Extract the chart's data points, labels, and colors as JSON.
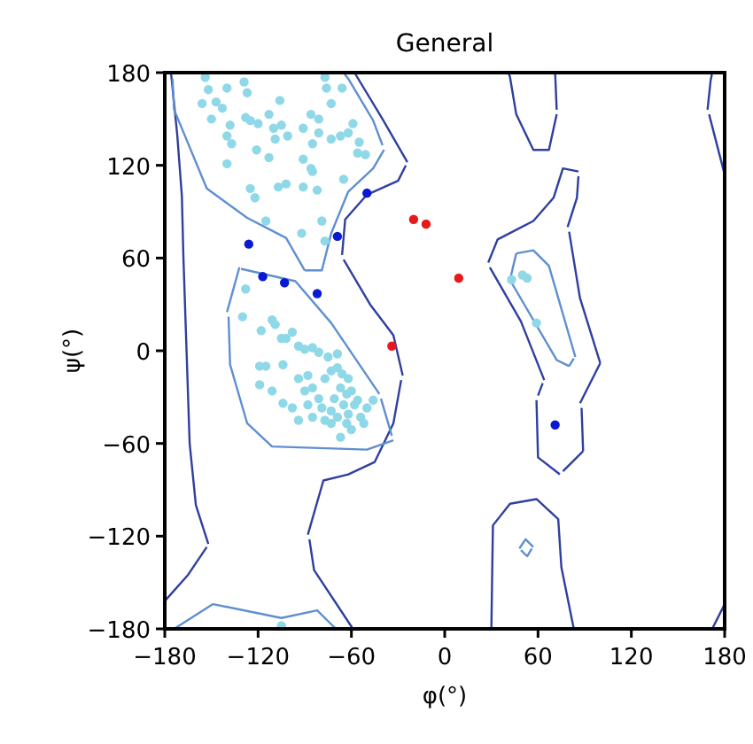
{
  "chart_data": {
    "type": "scatter",
    "title": "General",
    "xlabel": "φ(°)",
    "ylabel": "ψ(°)",
    "xlim": [
      -180,
      180
    ],
    "ylim": [
      -180,
      180
    ],
    "xticks": [
      -180,
      -120,
      -60,
      0,
      60,
      120,
      180
    ],
    "yticks": [
      -180,
      -120,
      -60,
      0,
      60,
      120,
      180
    ],
    "grid": false,
    "series": [
      {
        "type": "line",
        "color": "#2f3f9f",
        "x": [
          -176,
          -172,
          -169,
          -168,
          -166,
          -164,
          -160,
          -152
        ],
        "values": [
          180,
          140,
          100,
          60,
          0,
          -60,
          -100,
          -125
        ]
      },
      {
        "type": "line",
        "color": "#2f3f9f",
        "x": [
          -180,
          -165,
          -153
        ],
        "values": [
          -162,
          -145,
          -127
        ]
      },
      {
        "type": "line",
        "color": "#2f3f9f",
        "x": [
          -58,
          -40,
          -24
        ],
        "values": [
          180,
          150,
          122
        ]
      },
      {
        "type": "line",
        "color": "#2f3f9f",
        "x": [
          -66,
          -64,
          -50,
          -30,
          -25
        ],
        "values": [
          62,
          85,
          101,
          110,
          120
        ]
      },
      {
        "type": "line",
        "color": "#2f3f9f",
        "x": [
          -65,
          -48,
          -33,
          -27
        ],
        "values": [
          59,
          30,
          10,
          -16
        ]
      },
      {
        "type": "line",
        "color": "#2f3f9f",
        "x": [
          -88,
          -78,
          -62,
          -45,
          -33,
          -28
        ],
        "values": [
          -119,
          -84,
          -80,
          -72,
          -47,
          -19
        ]
      },
      {
        "type": "line",
        "color": "#2f3f9f",
        "x": [
          -87,
          -84,
          -59
        ],
        "values": [
          -122,
          -142,
          -180
        ]
      },
      {
        "type": "line",
        "color": "#2f3f9f",
        "x": [
          28,
          34,
          57,
          70,
          76,
          86
        ],
        "values": [
          57,
          72,
          84,
          99,
          118,
          116
        ]
      },
      {
        "type": "line",
        "color": "#2f3f9f",
        "x": [
          79,
          85,
          86
        ],
        "values": [
          80,
          99,
          113
        ]
      },
      {
        "type": "line",
        "color": "#2f3f9f",
        "x": [
          80,
          87,
          100
        ],
        "values": [
          77,
          34,
          -8
        ]
      },
      {
        "type": "line",
        "color": "#2f3f9f",
        "x": [
          87,
          100
        ],
        "values": [
          -34,
          -8
        ]
      },
      {
        "type": "line",
        "color": "#2f3f9f",
        "x": [
          88,
          89
        ],
        "values": [
          -37,
          -65
        ]
      },
      {
        "type": "line",
        "color": "#2f3f9f",
        "x": [
          76,
          89
        ],
        "values": [
          -78,
          -65
        ]
      },
      {
        "type": "line",
        "color": "#2f3f9f",
        "x": [
          59,
          60,
          74
        ],
        "values": [
          -32,
          -69,
          -80
        ]
      },
      {
        "type": "line",
        "color": "#2f3f9f",
        "x": [
          60,
          63
        ],
        "values": [
          -29,
          -21
        ]
      },
      {
        "type": "line",
        "color": "#2f3f9f",
        "x": [
          29,
          49,
          64
        ],
        "values": [
          54,
          19,
          -19
        ]
      },
      {
        "type": "line",
        "color": "#2f3f9f",
        "x": [
          41,
          42,
          46,
          57,
          67,
          72
        ],
        "values": [
          180,
          177,
          153,
          130,
          130,
          153
        ]
      },
      {
        "type": "line",
        "color": "#2f3f9f",
        "x": [
          71,
          72
        ],
        "values": [
          180,
          156
        ]
      },
      {
        "type": "line",
        "color": "#2f3f9f",
        "x": [
          169,
          171,
          172
        ],
        "values": [
          156,
          175,
          180
        ]
      },
      {
        "type": "line",
        "color": "#2f3f9f",
        "x": [
          170,
          180
        ],
        "values": [
          153,
          114
        ]
      },
      {
        "type": "line",
        "color": "#2f3f9f",
        "x": [
          30,
          31,
          42,
          59,
          73,
          75,
          83
        ],
        "values": [
          -180,
          -113,
          -99,
          -96,
          -109,
          -140,
          -180
        ]
      },
      {
        "type": "line",
        "color": "#2f3f9f",
        "x": [
          172,
          180
        ],
        "values": [
          -180,
          -164
        ]
      },
      {
        "type": "line",
        "color": "#5f8fd0",
        "x": [
          -175,
          -174,
          -153,
          -127,
          -102,
          -90
        ],
        "values": [
          176,
          156,
          105,
          86,
          73,
          52
        ]
      },
      {
        "type": "line",
        "color": "#5f8fd0",
        "x": [
          -90,
          -79,
          -73,
          -62,
          -46,
          -39
        ],
        "values": [
          52,
          52,
          76,
          103,
          118,
          130
        ]
      },
      {
        "type": "line",
        "color": "#5f8fd0",
        "x": [
          -65,
          -62,
          -46,
          -40
        ],
        "values": [
          180,
          176,
          149,
          133
        ]
      },
      {
        "type": "line",
        "color": "#5f8fd0",
        "x": [
          -140,
          -132
        ],
        "values": [
          25,
          54
        ]
      },
      {
        "type": "line",
        "color": "#5f8fd0",
        "x": [
          -139,
          -138,
          -127,
          -111,
          -50,
          -33
        ],
        "values": [
          22,
          -9,
          -47,
          -62,
          -64,
          -58
        ]
      },
      {
        "type": "line",
        "color": "#5f8fd0",
        "x": [
          -41,
          -34
        ],
        "values": [
          -31,
          -55
        ]
      },
      {
        "type": "line",
        "color": "#5f8fd0",
        "x": [
          -131,
          -96,
          -73,
          -42
        ],
        "values": [
          53,
          45,
          18,
          -28
        ]
      },
      {
        "type": "line",
        "color": "#5f8fd0",
        "x": [
          42,
          46
        ],
        "values": [
          46,
          63
        ]
      },
      {
        "type": "line",
        "color": "#5f8fd0",
        "x": [
          46,
          57,
          67,
          84
        ],
        "values": [
          63,
          65,
          55,
          -4
        ]
      },
      {
        "type": "line",
        "color": "#5f8fd0",
        "x": [
          80,
          83
        ],
        "values": [
          -10,
          -5
        ]
      },
      {
        "type": "line",
        "color": "#5f8fd0",
        "x": [
          43,
          72,
          80
        ],
        "values": [
          44,
          -6,
          -10
        ]
      },
      {
        "type": "line",
        "color": "#5f8fd0",
        "x": [
          48,
          52,
          57
        ],
        "values": [
          -128,
          -122,
          -127
        ]
      },
      {
        "type": "line",
        "color": "#5f8fd0",
        "x": [
          49,
          53,
          56
        ],
        "values": [
          -129,
          -133,
          -128
        ]
      },
      {
        "type": "line",
        "color": "#5f8fd0",
        "x": [
          -174,
          -149,
          -105,
          -82,
          -70
        ],
        "values": [
          -180,
          -164,
          -173,
          -168,
          -180
        ]
      },
      {
        "marker": "circle",
        "color": "#8fd8e8",
        "x": [
          -154,
          -152,
          -140,
          -129,
          -127,
          -156,
          -147,
          -143,
          -150,
          -138,
          -140,
          -137,
          -128,
          -125,
          -120,
          -113,
          -106,
          -110,
          -105,
          -109,
          -101,
          -121,
          -113,
          -140,
          -125,
          -122,
          -107,
          -102,
          -91,
          -91,
          -91,
          -85,
          -81,
          -73,
          -67,
          -62,
          -59,
          -77,
          -76,
          -66,
          -73,
          -86,
          -81,
          -55,
          -56,
          -51,
          -85,
          -82,
          -65,
          -115,
          -92,
          -79,
          -77,
          -86,
          -128,
          -130,
          -118,
          -111,
          -109,
          -105,
          -102,
          -98,
          -94,
          -90,
          -85,
          -81,
          -75,
          -69,
          -119,
          -115,
          -104,
          -119,
          -111,
          -104,
          -94,
          -88,
          -90,
          -85,
          -81,
          -77,
          -73,
          -69,
          -66,
          -62,
          -67,
          -63,
          -60,
          -56,
          -58,
          -62,
          -54,
          -65,
          -69,
          -73,
          -77,
          -85,
          -94,
          -88,
          -67,
          -60,
          -52,
          -50,
          -46,
          -71,
          -79,
          -98,
          -73,
          -63,
          -105,
          43,
          50,
          53,
          59
        ],
        "values": [
          177,
          169,
          170,
          174,
          167,
          160,
          161,
          157,
          150,
          146,
          139,
          134,
          151,
          149,
          147,
          153,
          162,
          144,
          146,
          137,
          139,
          130,
          125,
          121,
          105,
          99,
          106,
          108,
          106,
          124,
          144,
          134,
          141,
          137,
          139,
          141,
          147,
          177,
          170,
          170,
          160,
          153,
          150,
          135,
          128,
          127,
          116,
          104,
          111,
          84,
          76,
          84,
          71,
          118,
          40,
          22,
          13,
          20,
          17,
          8,
          8,
          12,
          3,
          1,
          2,
          -1,
          -4,
          -2,
          -10,
          -10,
          -9,
          -22,
          -26,
          -34,
          -18,
          -16,
          -26,
          -24,
          -31,
          -18,
          -13,
          -11,
          -15,
          -18,
          -24,
          -28,
          -26,
          -32,
          -35,
          -41,
          -43,
          -35,
          -43,
          -39,
          -45,
          -43,
          -45,
          -35,
          -56,
          -51,
          -47,
          -37,
          -32,
          -31,
          -37,
          -37,
          -47,
          -47,
          -178,
          46,
          49,
          47,
          18
        ]
      },
      {
        "marker": "circle",
        "color": "#0a1ad0",
        "x": [
          -126,
          -117,
          -103,
          -82,
          -69,
          -50,
          71
        ],
        "values": [
          69,
          48,
          44,
          37,
          74,
          102,
          -48
        ]
      },
      {
        "marker": "circle",
        "color": "#e8191a",
        "x": [
          -20,
          -12,
          9,
          -34
        ],
        "values": [
          85,
          82,
          47,
          3
        ]
      }
    ]
  }
}
